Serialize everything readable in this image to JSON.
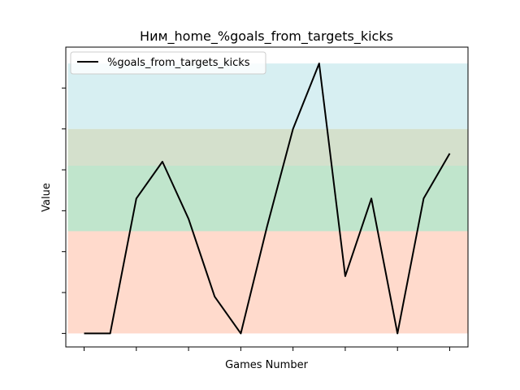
{
  "chart_data": {
    "type": "line",
    "title": "Ним_home_%goals_from_targets_kicks",
    "xlabel": "Games Number",
    "ylabel": "Value",
    "x": [
      0,
      1,
      2,
      3,
      4,
      5,
      6,
      7,
      8,
      9,
      10,
      11,
      12,
      13,
      14
    ],
    "series": [
      {
        "name": "%goals_from_targets_kicks",
        "color": "#000000",
        "values": [
          0,
          0,
          33,
          42,
          28,
          9,
          0,
          26,
          50,
          66,
          14,
          33,
          0,
          33,
          44
        ]
      }
    ],
    "bands": [
      {
        "from": 0,
        "to": 25,
        "color": "#ffdacc"
      },
      {
        "from": 25,
        "to": 41,
        "color": "#c0e5cc"
      },
      {
        "from": 41,
        "to": 50,
        "color": "#d4e0cc"
      },
      {
        "from": 50,
        "to": 66,
        "color": "#d7eff2"
      }
    ],
    "xlim": [
      -0.7,
      14.7
    ],
    "ylim": [
      -3.3,
      70
    ],
    "y_ticks": [
      0,
      10,
      20,
      30,
      40,
      50,
      60
    ],
    "x_ticks": [
      0,
      2,
      4,
      6,
      8,
      10,
      12,
      14
    ],
    "grid": false,
    "legend_position": "top-left",
    "legend": {
      "label": "%goals_from_targets_kicks"
    }
  }
}
